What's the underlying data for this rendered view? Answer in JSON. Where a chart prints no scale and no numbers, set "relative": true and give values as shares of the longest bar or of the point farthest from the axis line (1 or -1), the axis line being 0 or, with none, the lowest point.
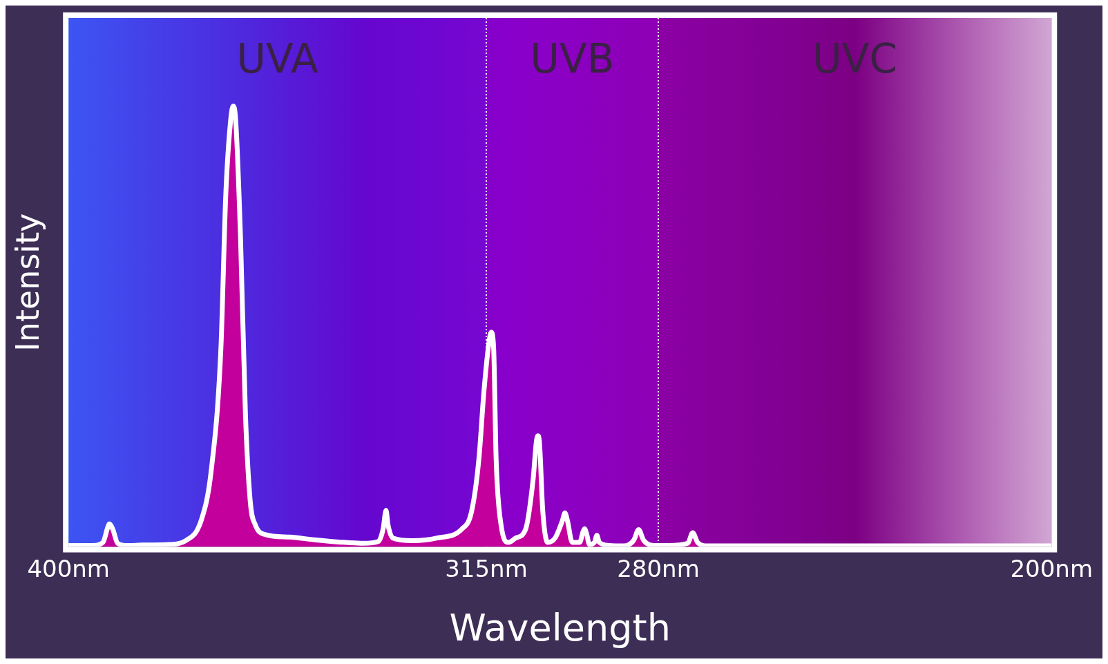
{
  "chart_data": {
    "type": "area",
    "xlabel": "Wavelength",
    "ylabel": "Intensity",
    "relative": true,
    "xlim": [
      400,
      200
    ],
    "xticks": [
      {
        "value": 400,
        "label": "400nm"
      },
      {
        "value": 315,
        "label": "315nm"
      },
      {
        "value": 280,
        "label": "280nm"
      },
      {
        "value": 200,
        "label": "200nm"
      }
    ],
    "grid": false,
    "legend": false,
    "marker": "none",
    "line_style": "solid",
    "ref_lines": [
      {
        "axis": "x",
        "value": 315,
        "color": "#ffffff",
        "line_style": "dotted"
      },
      {
        "axis": "x",
        "value": 280,
        "color": "#ffffff",
        "line_style": "dotted"
      }
    ],
    "bands": [
      {
        "axis": "x",
        "from": 400,
        "to": 315,
        "label": "UVA",
        "color": "#5a18d8"
      },
      {
        "axis": "x",
        "from": 315,
        "to": 280,
        "label": "UVB",
        "color": "#8c00c0"
      },
      {
        "axis": "x",
        "from": 280,
        "to": 200,
        "label": "UVC",
        "color": "#80008c"
      }
    ],
    "series": [
      {
        "color": "#ffffff",
        "x": [
          400,
          395,
          393,
          392,
          391.7,
          391,
          390,
          388,
          385,
          380,
          376,
          373,
          371,
          369,
          368,
          367,
          366.5,
          366,
          365,
          364,
          363,
          362,
          360,
          355,
          350,
          345,
          340,
          337,
          336,
          335.4,
          335,
          334,
          330,
          325,
          320,
          318,
          316.5,
          315.5,
          314.5,
          314,
          313.5,
          313,
          312,
          310.5,
          309,
          307,
          305.5,
          304.8,
          304.5,
          304.2,
          303.5,
          302.5,
          301,
          299.5,
          299,
          298.5,
          297.5,
          296,
          295.3,
          295,
          294.6,
          294,
          293,
          292.5,
          292,
          290,
          287,
          285,
          284,
          283,
          281,
          278,
          274,
          273,
          272,
          270,
          260,
          200
        ],
        "values": [
          0.003,
          0.003,
          0.01,
          0.045,
          0.052,
          0.04,
          0.008,
          0.003,
          0.004,
          0.005,
          0.015,
          0.06,
          0.17,
          0.45,
          0.8,
          0.97,
          1.0,
          0.97,
          0.7,
          0.3,
          0.1,
          0.05,
          0.028,
          0.022,
          0.016,
          0.011,
          0.008,
          0.012,
          0.04,
          0.083,
          0.05,
          0.02,
          0.014,
          0.02,
          0.04,
          0.08,
          0.2,
          0.35,
          0.46,
          0.487,
          0.45,
          0.2,
          0.05,
          0.01,
          0.02,
          0.04,
          0.15,
          0.24,
          0.252,
          0.24,
          0.08,
          0.01,
          0.02,
          0.06,
          0.077,
          0.06,
          0.01,
          0.01,
          0.035,
          0.041,
          0.03,
          0.005,
          0.01,
          0.026,
          0.01,
          0.003,
          0.002,
          0.015,
          0.039,
          0.015,
          0.003,
          0.003,
          0.008,
          0.032,
          0.01,
          0.002,
          0.002,
          0.002
        ]
      }
    ]
  }
}
